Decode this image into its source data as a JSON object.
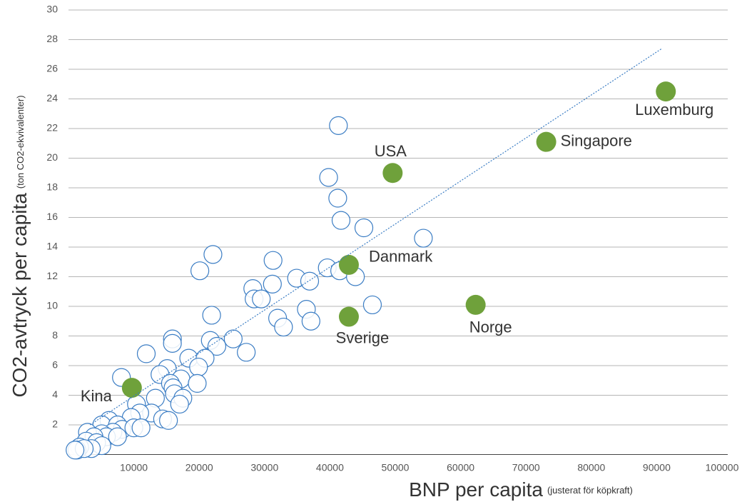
{
  "chart_data": {
    "type": "scatter",
    "y_label": "CO2-avtryck per capita",
    "y_label_note": "(ton CO2-ekvivalenter)",
    "x_label": "BNP per capita",
    "x_label_note": "(justerat för köpkraft)",
    "xlim": [
      0,
      100000
    ],
    "ylim": [
      0,
      30
    ],
    "xticks": [
      10000,
      20000,
      30000,
      40000,
      50000,
      60000,
      70000,
      80000,
      90000,
      100000
    ],
    "yticks": [
      2,
      4,
      6,
      8,
      10,
      12,
      14,
      16,
      18,
      20,
      22,
      24,
      26,
      28,
      30
    ],
    "grid": true,
    "series": [
      {
        "color": "#3b7dc4",
        "x": [
          41300,
          39800,
          41200,
          41700,
          45200,
          54300,
          22100,
          31300,
          20100,
          39600,
          41500,
          43900,
          34900,
          36900,
          31200,
          28200,
          28400,
          29500,
          46500,
          36400,
          21900,
          32000,
          37100,
          32900,
          15900,
          15900,
          21700,
          25200,
          22700,
          27200,
          11900,
          18400,
          20900,
          19900,
          15100,
          8100,
          14000,
          17200,
          15600,
          16000,
          19700,
          16200,
          17500,
          13300,
          17000,
          10400,
          12700,
          10900,
          9600,
          6200,
          14400,
          15300,
          5100,
          7500,
          8200,
          10000,
          11100,
          6800,
          5100,
          2900,
          5800,
          3900,
          7500,
          2700,
          4300,
          5100,
          3500,
          1700,
          1300,
          2400,
          1000
        ],
        "values": [
          22.2,
          18.7,
          17.3,
          15.8,
          15.3,
          14.6,
          13.5,
          13.1,
          12.4,
          12.6,
          12.4,
          12.0,
          11.9,
          11.7,
          11.5,
          11.2,
          10.5,
          10.5,
          10.1,
          9.8,
          9.4,
          9.2,
          9.0,
          8.6,
          7.8,
          7.5,
          7.7,
          7.8,
          7.3,
          6.9,
          6.8,
          6.5,
          6.5,
          5.9,
          5.8,
          5.2,
          5.4,
          5.1,
          4.8,
          4.5,
          4.8,
          4.1,
          3.8,
          3.8,
          3.4,
          3.4,
          2.8,
          2.8,
          2.5,
          2.3,
          2.4,
          2.3,
          2.0,
          2.0,
          1.7,
          1.8,
          1.8,
          1.5,
          1.4,
          1.5,
          1.2,
          1.2,
          1.2,
          0.9,
          0.8,
          0.6,
          0.4,
          0.5,
          0.3,
          0.4,
          0.3
        ]
      },
      {
        "color": "#6fa13b",
        "labels": [
          "Luxemburg",
          "Singapore",
          "USA",
          "Danmark",
          "Sverige",
          "Norge",
          "Kina"
        ],
        "x": [
          91400,
          73100,
          49600,
          42900,
          42900,
          62300,
          9700
        ],
        "values": [
          24.5,
          21.1,
          19.0,
          12.8,
          9.3,
          10.1,
          4.5
        ]
      }
    ],
    "trendline": {
      "color": "#3b7dc4",
      "x": [
        3300,
        90800
      ],
      "values": [
        2.0,
        27.4
      ]
    }
  }
}
